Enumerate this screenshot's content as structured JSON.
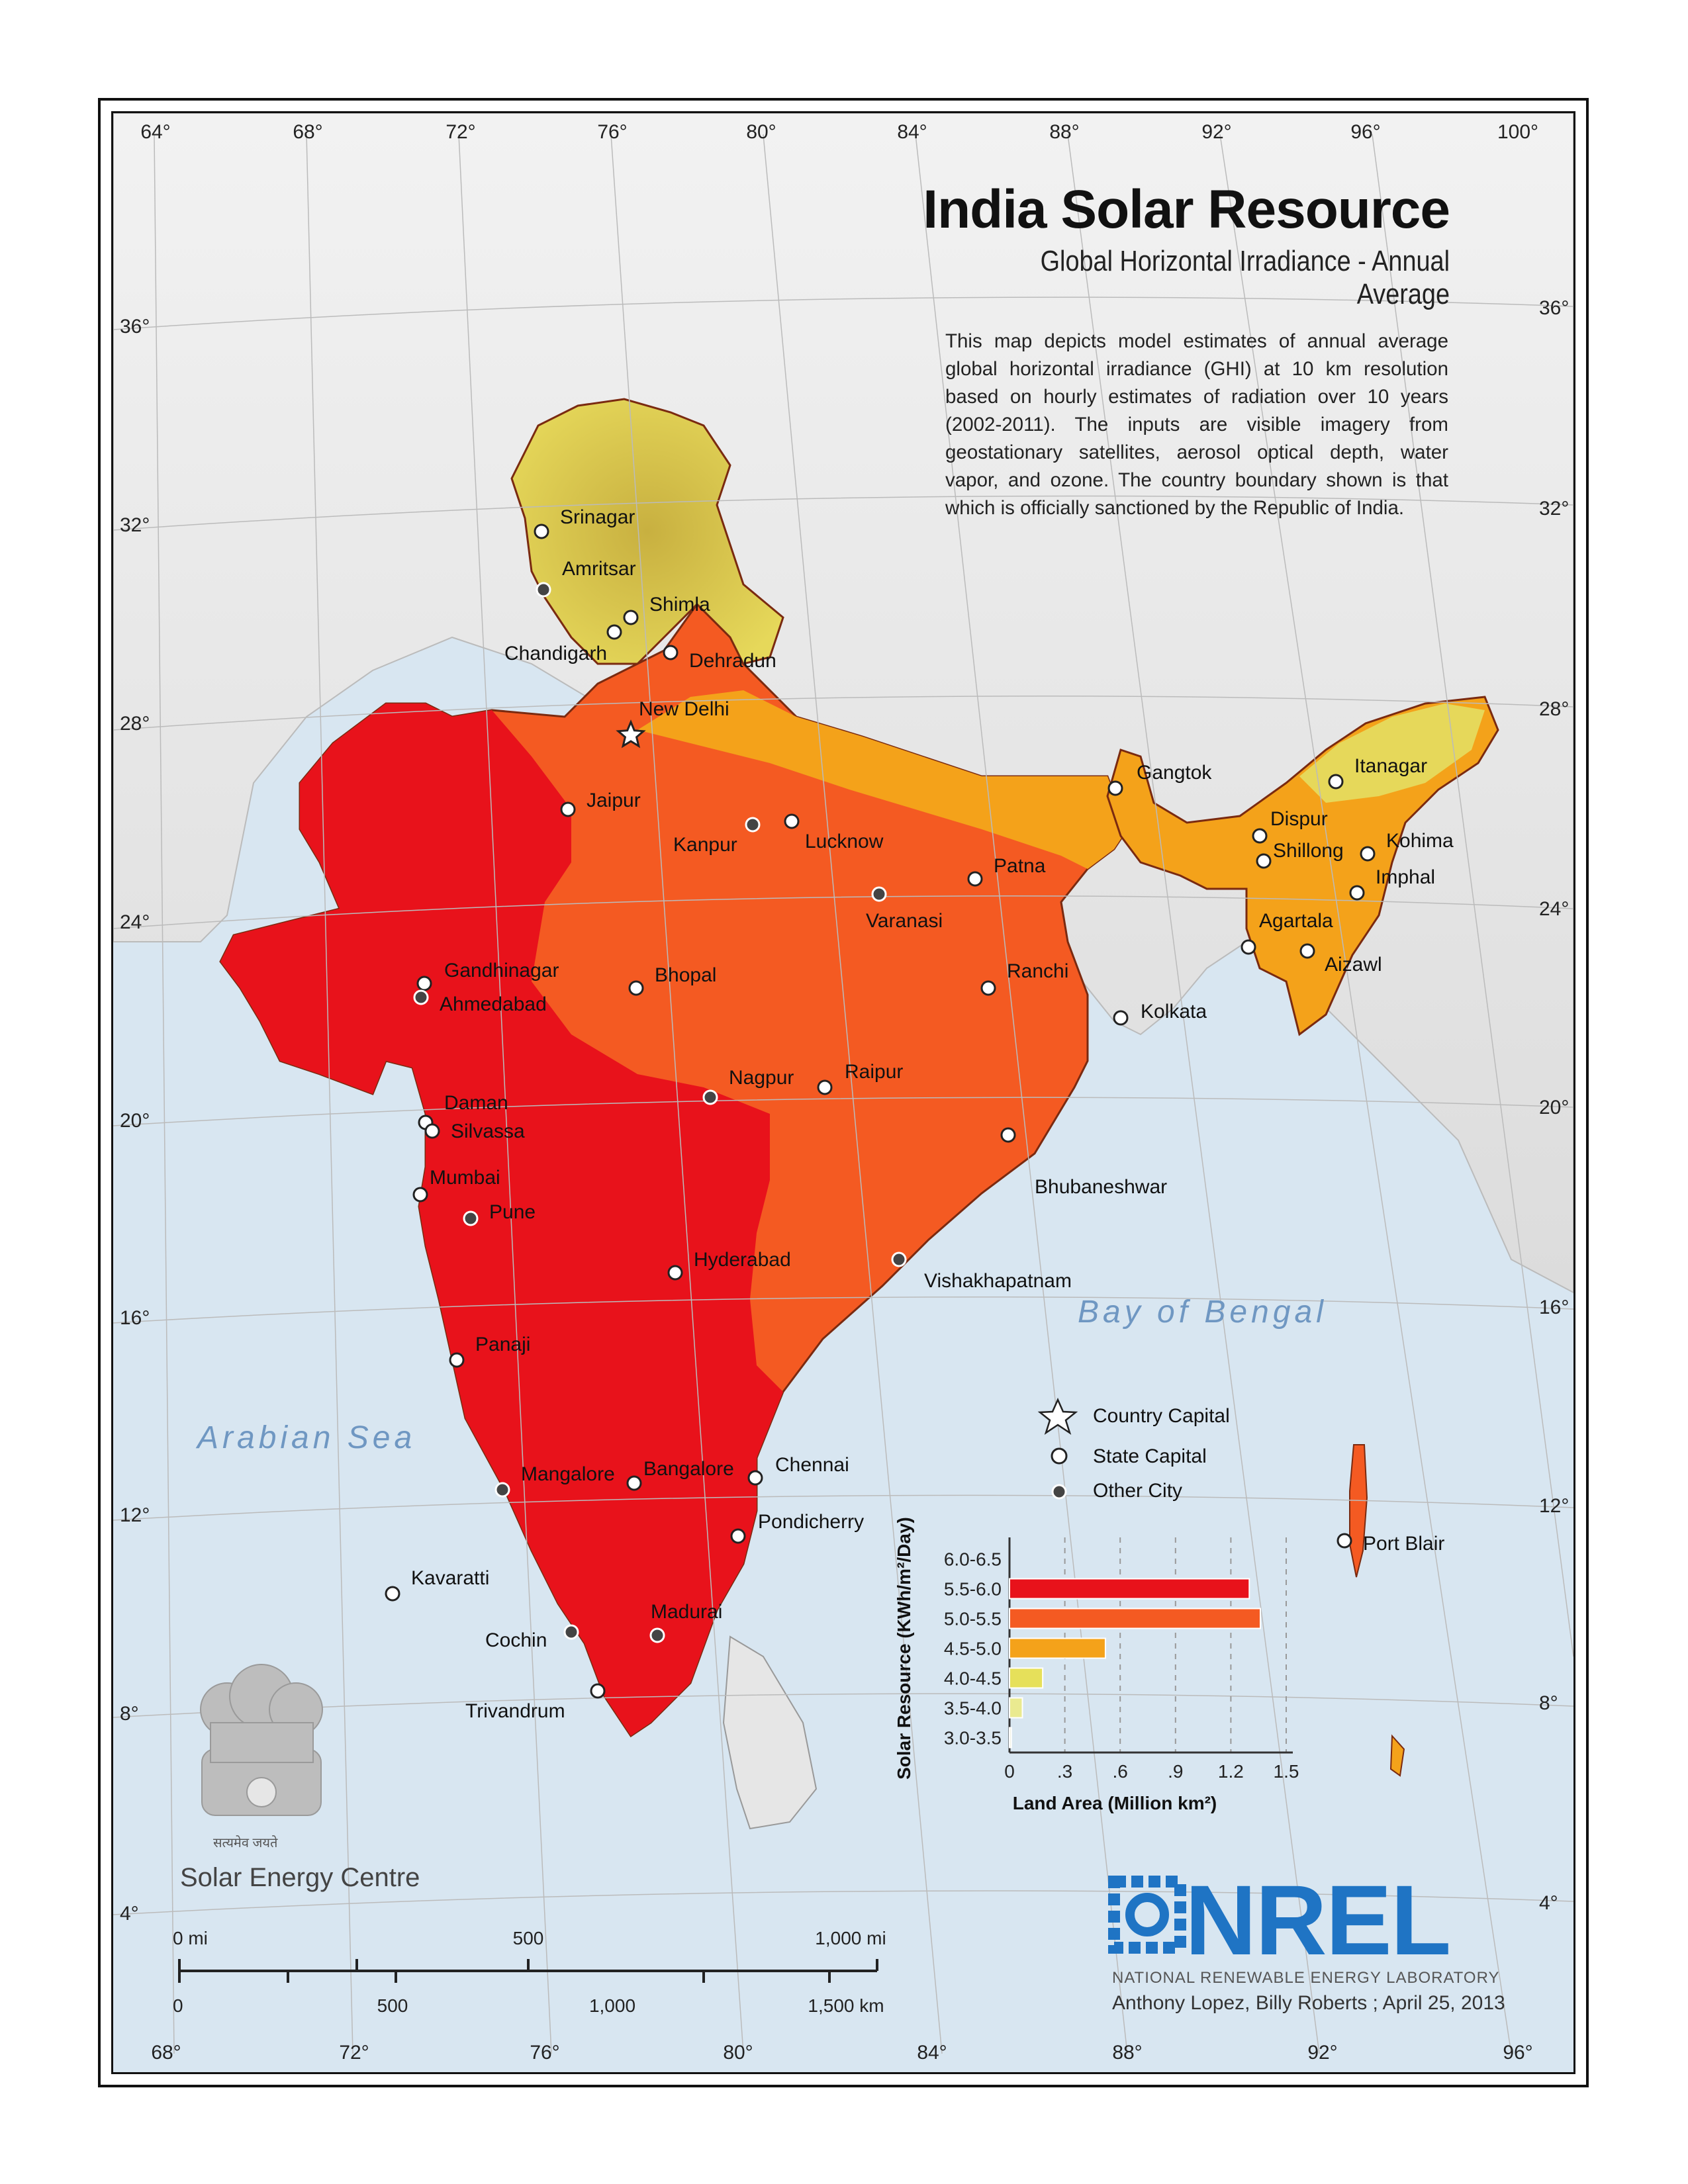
{
  "title": "India Solar Resource",
  "subtitle": "Global Horizontal Irradiance - Annual Average",
  "description": "This map depicts model estimates of annual average global horizontal irradiance (GHI) at 10 km resolution based on hourly estimates of radiation over 10 years (2002-2011). The inputs are visible imagery from geostationary satellites, aerosol optical depth, water vapor, and ozone. The country boundary shown is that which is officially sanctioned by the Republic of India.",
  "graticule": {
    "top_longitudes": [
      "64°",
      "68°",
      "72°",
      "76°",
      "80°",
      "84°",
      "88°",
      "92°",
      "96°",
      "100°"
    ],
    "bottom_longitudes": [
      "68°",
      "72°",
      "76°",
      "80°",
      "84°",
      "88°",
      "92°",
      "96°"
    ],
    "left_latitudes": [
      "36°",
      "32°",
      "28°",
      "24°",
      "20°",
      "16°",
      "12°",
      "8°",
      "4°"
    ],
    "right_latitudes": [
      "36°",
      "32°",
      "28°",
      "24°",
      "20°",
      "16°",
      "12°",
      "8°",
      "4°"
    ]
  },
  "seas": {
    "arabian": "Arabian Sea",
    "bengal": "Bay of Bengal"
  },
  "cities": [
    {
      "name": "Srinagar",
      "type": "state"
    },
    {
      "name": "Amritsar",
      "type": "other"
    },
    {
      "name": "Shimla",
      "type": "state"
    },
    {
      "name": "Chandigarh",
      "type": "state"
    },
    {
      "name": "Dehradun",
      "type": "state"
    },
    {
      "name": "New Delhi",
      "type": "country"
    },
    {
      "name": "Jaipur",
      "type": "state"
    },
    {
      "name": "Kanpur",
      "type": "other"
    },
    {
      "name": "Lucknow",
      "type": "state"
    },
    {
      "name": "Patna",
      "type": "state"
    },
    {
      "name": "Varanasi",
      "type": "other"
    },
    {
      "name": "Gandhinagar",
      "type": "state"
    },
    {
      "name": "Ahmedabad",
      "type": "other"
    },
    {
      "name": "Bhopal",
      "type": "state"
    },
    {
      "name": "Ranchi",
      "type": "state"
    },
    {
      "name": "Kolkata",
      "type": "state"
    },
    {
      "name": "Nagpur",
      "type": "other"
    },
    {
      "name": "Raipur",
      "type": "state"
    },
    {
      "name": "Daman",
      "type": "state"
    },
    {
      "name": "Silvassa",
      "type": "state"
    },
    {
      "name": "Mumbai",
      "type": "state"
    },
    {
      "name": "Pune",
      "type": "other"
    },
    {
      "name": "Bhubaneshwar",
      "type": "state"
    },
    {
      "name": "Hyderabad",
      "type": "state"
    },
    {
      "name": "Vishakhapatnam",
      "type": "other"
    },
    {
      "name": "Panaji",
      "type": "state"
    },
    {
      "name": "Mangalore",
      "type": "other"
    },
    {
      "name": "Bangalore",
      "type": "state"
    },
    {
      "name": "Chennai",
      "type": "state"
    },
    {
      "name": "Pondicherry",
      "type": "state"
    },
    {
      "name": "Kavaratti",
      "type": "state"
    },
    {
      "name": "Cochin",
      "type": "other"
    },
    {
      "name": "Madurai",
      "type": "other"
    },
    {
      "name": "Trivandrum",
      "type": "state"
    },
    {
      "name": "Gangtok",
      "type": "state"
    },
    {
      "name": "Itanagar",
      "type": "state"
    },
    {
      "name": "Dispur",
      "type": "state"
    },
    {
      "name": "Shillong",
      "type": "state"
    },
    {
      "name": "Kohima",
      "type": "state"
    },
    {
      "name": "Imphal",
      "type": "state"
    },
    {
      "name": "Agartala",
      "type": "state"
    },
    {
      "name": "Aizawl",
      "type": "state"
    },
    {
      "name": "Port Blair",
      "type": "state"
    }
  ],
  "legend": {
    "country_capital": "Country Capital",
    "state_capital": "State Capital",
    "other_city": "Other City"
  },
  "chart_data": {
    "type": "bar",
    "orientation": "horizontal",
    "ylabel": "Solar Resource (KWh/m²/Day)",
    "xlabel": "Land Area (Million km²)",
    "categories": [
      "6.0-6.5",
      "5.5-6.0",
      "5.0-5.5",
      "4.5-5.0",
      "4.0-4.5",
      "3.5-4.0",
      "3.0-3.5"
    ],
    "values": [
      0,
      1.3,
      1.36,
      0.52,
      0.18,
      0.07,
      0.01
    ],
    "colors": [
      "#8b0000",
      "#e8121b",
      "#f45a22",
      "#f4a21a",
      "#e6e05a",
      "#eaea90",
      "#eeeedd"
    ],
    "xticks": [
      "0",
      ".3",
      ".6",
      ".9",
      "1.2",
      "1.5"
    ],
    "xlim": [
      0,
      1.5
    ],
    "grid": true
  },
  "scale": {
    "mi_labels": [
      "0 mi",
      "500",
      "1,000 mi"
    ],
    "km_labels": [
      "0",
      "500",
      "1,000",
      "1,500 km"
    ]
  },
  "logos": {
    "sec_text": "Solar Energy Centre",
    "sec_hindi": "सत्यमेव जयते",
    "nrel_text": "NREL",
    "nrel_sub": "NATIONAL RENEWABLE ENERGY LABORATORY"
  },
  "credit": "Anthony Lopez, Billy Roberts ; April 25, 2013",
  "colors": {
    "red": "#e8121b",
    "orange_red": "#f45a22",
    "orange": "#f4a21a",
    "yellow": "#e6d85a",
    "sea": "#d8e6f1",
    "land_gray": "#e6e6e6"
  }
}
